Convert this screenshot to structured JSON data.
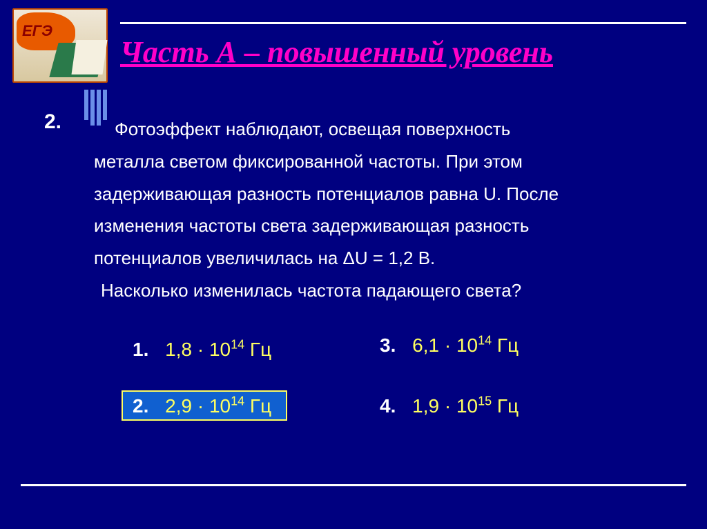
{
  "logo": {
    "text": "ЕГЭ"
  },
  "title": "Часть  А  –  повышенный уровень",
  "question": {
    "number": "2.",
    "line1": "Фотоэффект наблюдают, освещая поверхность",
    "line2": "металла светом фиксированной частоты. При этом",
    "line3": "задерживающая разность потенциалов равна U. После",
    "line4": "изменения частоты света задерживающая разность",
    "line5": "потенциалов увеличилась на ΔU = 1,2 В.",
    "line6": "Насколько изменилась частота падающего света?"
  },
  "answers": {
    "a1": {
      "num": "1.",
      "coef": "1,8 · 10",
      "exp": "14",
      "unit": " Гц"
    },
    "a2": {
      "num": "2.",
      "coef": "2,9 · 10",
      "exp": "14",
      "unit": " Гц"
    },
    "a3": {
      "num": "3.",
      "coef": "6,1 · 10",
      "exp": "14",
      "unit": "  Гц"
    },
    "a4": {
      "num": "4.",
      "coef": "1,9 · 10",
      "exp": "15",
      "unit": "  Гц"
    }
  },
  "colors": {
    "background": "#000080",
    "title": "#ff00c8",
    "text": "#ffffff",
    "answer_value": "#ffff60",
    "correct_fill": "#1060d0",
    "correct_border": "#ffff60",
    "deco_bar": "#6a8fe8"
  }
}
